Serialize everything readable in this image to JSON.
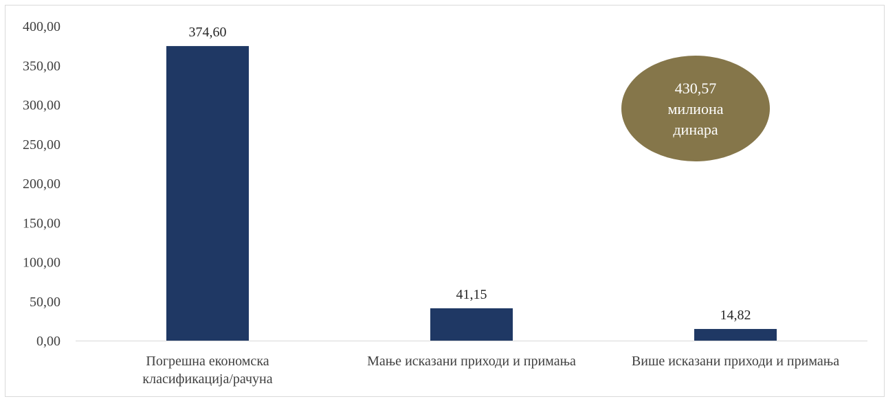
{
  "chart_data": {
    "type": "bar",
    "categories": [
      [
        "Погрешна економска",
        "класификација/рачуна"
      ],
      [
        "Мање исказани приходи и примања"
      ],
      [
        "Више исказани приходи и примања"
      ]
    ],
    "values": [
      374.6,
      41.15,
      14.82
    ],
    "value_labels": [
      "374,60",
      "41,15",
      "14,82"
    ],
    "ylim": [
      0,
      400
    ],
    "y_ticks": [
      "0,00",
      "50,00",
      "100,00",
      "150,00",
      "200,00",
      "250,00",
      "300,00",
      "350,00",
      "400,00"
    ],
    "y_tick_values": [
      0,
      50,
      100,
      150,
      200,
      250,
      300,
      350,
      400
    ],
    "grid": false,
    "bar_color": "#1f3864",
    "title": "",
    "xlabel": "",
    "ylabel": ""
  },
  "callout": {
    "lines": [
      "430,57",
      "милиона",
      "динара"
    ],
    "color": "#85764a"
  }
}
